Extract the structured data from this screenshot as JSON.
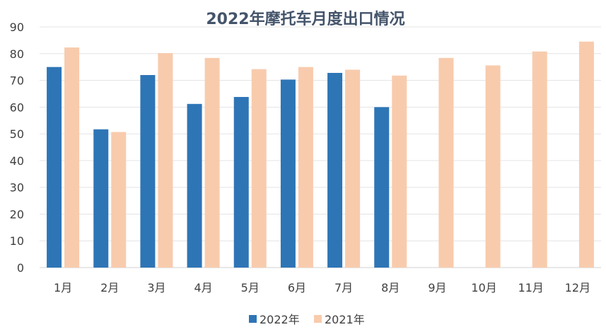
{
  "chart_data": {
    "type": "bar",
    "title": "2022年摩托车月度出口情况",
    "categories": [
      "1月",
      "2月",
      "3月",
      "4月",
      "5月",
      "6月",
      "7月",
      "8月",
      "9月",
      "10月",
      "11月",
      "12月"
    ],
    "series": [
      {
        "name": "2022年",
        "color": "#2e75b6",
        "values": [
          75,
          51.7,
          72,
          61.2,
          63.8,
          70.3,
          72.8,
          60,
          null,
          null,
          null,
          null
        ]
      },
      {
        "name": "2021年",
        "color": "#f8cbad",
        "values": [
          82.3,
          50.7,
          80.2,
          78.4,
          74.2,
          75,
          74,
          71.8,
          78.4,
          75.6,
          80.8,
          84.5
        ]
      }
    ],
    "ylim": [
      0,
      90
    ],
    "yticks": [
      0,
      10,
      20,
      30,
      40,
      50,
      60,
      70,
      80,
      90
    ],
    "xlabel": "",
    "ylabel": "",
    "grid": true,
    "legend": "bottom"
  }
}
